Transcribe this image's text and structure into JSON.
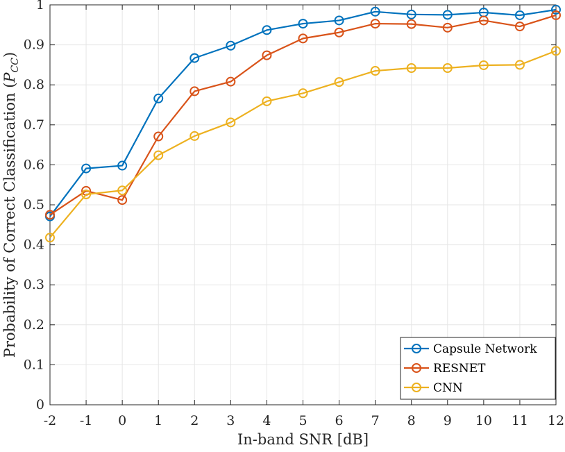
{
  "chart_data": {
    "type": "line",
    "title": "",
    "xlabel": "In-band SNR [dB]",
    "ylabel": "Probability of Correct Classification (",
    "ylabel_symbol": "P",
    "ylabel_subscript": "CC",
    "ylabel_close": ")",
    "x": [
      -2,
      -1,
      0,
      1,
      2,
      3,
      4,
      5,
      6,
      7,
      8,
      9,
      10,
      11,
      12
    ],
    "xlim": [
      -2,
      12
    ],
    "ylim": [
      0,
      1
    ],
    "x_ticks": [
      -2,
      -1,
      0,
      1,
      2,
      3,
      4,
      5,
      6,
      7,
      8,
      9,
      10,
      11,
      12
    ],
    "x_tick_labels": [
      "-2",
      "-1",
      "0",
      "1",
      "2",
      "3",
      "4",
      "5",
      "6",
      "7",
      "8",
      "9",
      "10",
      "11",
      "12"
    ],
    "y_ticks": [
      0,
      0.1,
      0.2,
      0.3,
      0.4,
      0.5,
      0.6,
      0.7,
      0.8,
      0.9,
      1
    ],
    "y_tick_labels": [
      "0",
      "0.1",
      "0.2",
      "0.3",
      "0.4",
      "0.5",
      "0.6",
      "0.7",
      "0.8",
      "0.9",
      "1"
    ],
    "grid": true,
    "legend_position": "bottom-right",
    "marker": "circle",
    "series": [
      {
        "name": "Capsule Network",
        "color": "#0072BD",
        "values": [
          0.471,
          0.591,
          0.598,
          0.766,
          0.867,
          0.898,
          0.937,
          0.953,
          0.961,
          0.983,
          0.976,
          0.975,
          0.981,
          0.974,
          0.988
        ]
      },
      {
        "name": "RESNET",
        "color": "#D95319",
        "values": [
          0.475,
          0.535,
          0.512,
          0.671,
          0.784,
          0.808,
          0.874,
          0.916,
          0.931,
          0.953,
          0.952,
          0.943,
          0.961,
          0.946,
          0.974
        ]
      },
      {
        "name": "CNN",
        "color": "#EDB120",
        "values": [
          0.418,
          0.526,
          0.536,
          0.624,
          0.672,
          0.706,
          0.759,
          0.779,
          0.807,
          0.835,
          0.842,
          0.842,
          0.849,
          0.85,
          0.885
        ]
      }
    ]
  }
}
